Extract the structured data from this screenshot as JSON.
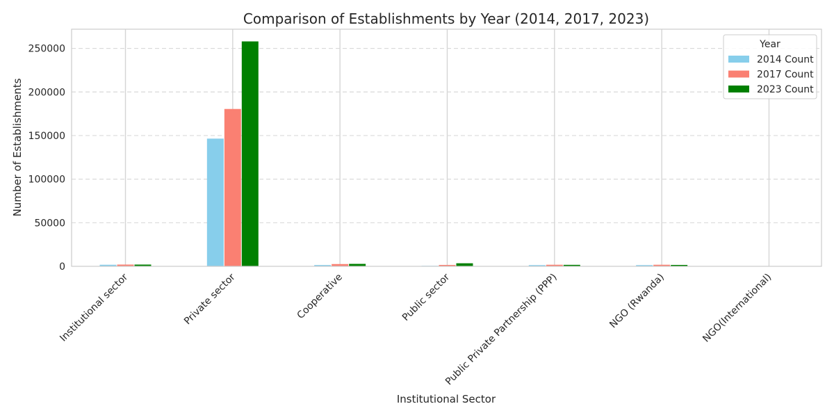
{
  "chart_data": {
    "type": "bar",
    "title": "Comparison of Establishments by Year (2014, 2017, 2023)",
    "xlabel": "Institutional Sector",
    "ylabel": "Number of Establishments",
    "categories": [
      "Institutional sector",
      "Private sector",
      "Cooperative",
      "Public sector",
      "Public Private Partnership (PPP)",
      "NGO (Rwanda)",
      "NGO(International)"
    ],
    "series": [
      {
        "name": "2014 Count",
        "color": "#87ceeb",
        "values": [
          1800,
          146500,
          1500,
          600,
          1400,
          1400,
          0
        ]
      },
      {
        "name": "2017 Count",
        "color": "#fa8072",
        "values": [
          2000,
          180500,
          2600,
          1600,
          1800,
          1800,
          0
        ]
      },
      {
        "name": "2023 Count",
        "color": "#008000",
        "values": [
          2000,
          258000,
          2800,
          3500,
          1700,
          1600,
          0
        ]
      }
    ],
    "ylim": [
      0,
      272000
    ],
    "yticks": [
      0,
      50000,
      100000,
      150000,
      200000,
      250000
    ],
    "grid": {
      "x": "solid-light",
      "y": "dashed"
    },
    "legend": {
      "title": "Year",
      "placement": "top-right"
    }
  }
}
